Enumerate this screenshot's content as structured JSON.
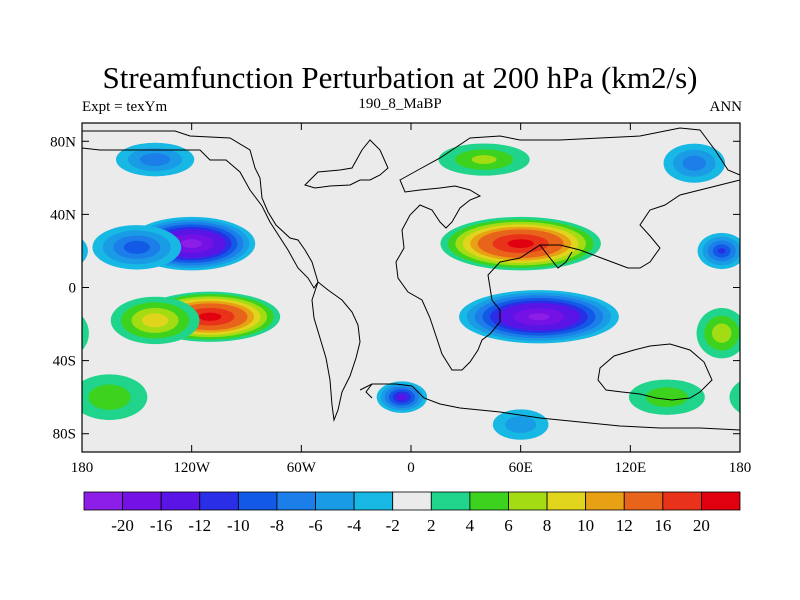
{
  "title": "Streamfunction Perturbation at 200 hPa (km2/s)",
  "left_label": "Expt = texYm",
  "center_label": "190_8_MaBP",
  "right_label": "ANN",
  "chart_data": {
    "type": "heatmap",
    "title": "Streamfunction Perturbation at 200 hPa (km2/s)",
    "xlim": [
      -180,
      180
    ],
    "ylim": [
      -90,
      90
    ],
    "x_ticks": [
      {
        "value": -180,
        "label": "180"
      },
      {
        "value": -120,
        "label": "120W"
      },
      {
        "value": -60,
        "label": "60W"
      },
      {
        "value": 0,
        "label": "0"
      },
      {
        "value": 60,
        "label": "60E"
      },
      {
        "value": 120,
        "label": "120E"
      },
      {
        "value": 180,
        "label": "180"
      }
    ],
    "y_ticks": [
      {
        "value": 80,
        "label": "80N"
      },
      {
        "value": 40,
        "label": "40N"
      },
      {
        "value": 0,
        "label": "0"
      },
      {
        "value": -40,
        "label": "40S"
      },
      {
        "value": -80,
        "label": "80S"
      }
    ],
    "background_color": "#ebebeb",
    "levels": [
      -20,
      -16,
      -12,
      -10,
      -8,
      -6,
      -4,
      -2,
      2,
      4,
      6,
      8,
      10,
      12,
      16,
      20
    ],
    "level_labels": [
      "-20",
      "-16",
      "-12",
      "-10",
      "-8",
      "-6",
      "-4",
      "-2",
      "2",
      "4",
      "6",
      "8",
      "10",
      "12",
      "16",
      "20"
    ],
    "colors": [
      "#8c1ee8",
      "#7412e6",
      "#5b14e6",
      "#2a2ee6",
      "#125ae6",
      "#1c7ee8",
      "#1a9be6",
      "#17b8e3",
      "#ebebeb",
      "#20d48c",
      "#3cd21e",
      "#a4dc14",
      "#e0d41c",
      "#e8a014",
      "#e8641a",
      "#e8321a",
      "#e00010"
    ],
    "features": [
      {
        "lon": -120,
        "lat": 24,
        "value": -22,
        "rx": 38,
        "ry": 16
      },
      {
        "lon": -150,
        "lat": 22,
        "value": -9,
        "rx": 30,
        "ry": 15
      },
      {
        "lon": -110,
        "lat": -16,
        "value": 22,
        "rx": 42,
        "ry": 15
      },
      {
        "lon": -140,
        "lat": -18,
        "value": 9,
        "rx": 30,
        "ry": 16
      },
      {
        "lon": 60,
        "lat": 24,
        "value": 22,
        "rx": 48,
        "ry": 16
      },
      {
        "lon": 70,
        "lat": -16,
        "value": -21,
        "rx": 48,
        "ry": 16
      },
      {
        "lon": 40,
        "lat": 70,
        "value": 6,
        "rx": 34,
        "ry": 12
      },
      {
        "lon": -140,
        "lat": 70,
        "value": -7,
        "rx": 28,
        "ry": 12
      },
      {
        "lon": 155,
        "lat": 68,
        "value": -7,
        "rx": 22,
        "ry": 14
      },
      {
        "lon": 170,
        "lat": 20,
        "value": -10,
        "rx": 16,
        "ry": 12
      },
      {
        "lon": -5,
        "lat": -60,
        "value": -13,
        "rx": 16,
        "ry": 10
      },
      {
        "lon": 170,
        "lat": -25,
        "value": 7,
        "rx": 18,
        "ry": 18
      },
      {
        "lon": -165,
        "lat": -60,
        "value": 5,
        "rx": 30,
        "ry": 18
      },
      {
        "lon": 140,
        "lat": -60,
        "value": 5,
        "rx": 30,
        "ry": 14
      },
      {
        "lon": 60,
        "lat": -75,
        "value": -5,
        "rx": 22,
        "ry": 12
      }
    ]
  }
}
